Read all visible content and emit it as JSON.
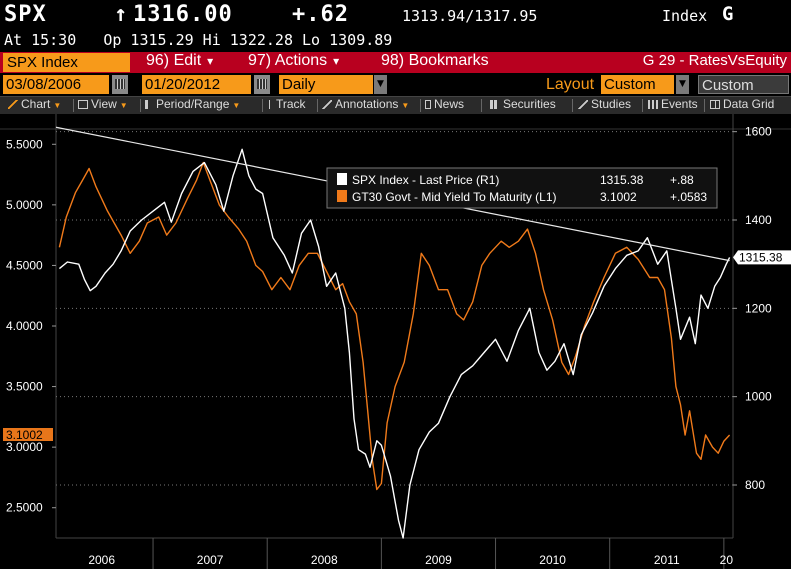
{
  "header": {
    "ticker": "SPX",
    "arrow": "↑",
    "price": "1316.00",
    "change": "+.62",
    "bid_ask": "1313.94/1317.95",
    "index_label": "Index",
    "index_letter": "G",
    "line2": "At 15:30   Op 1315.29 Hi 1322.28 Lo 1309.89"
  },
  "menu": {
    "security": "SPX Index",
    "items": [
      {
        "label": "96) Edit"
      },
      {
        "label": "97) Actions"
      },
      {
        "label": "98) Bookmarks"
      }
    ],
    "right_label": "G 29 - RatesVsEquity"
  },
  "datebar": {
    "start_date": "03/08/2006",
    "end_date": "01/20/2012",
    "periodicity": "Daily",
    "layout_label": "Layout",
    "layout_value": "Custom",
    "currency": "Custom CCY"
  },
  "toolbar": {
    "items": [
      "Chart",
      "View",
      "Period/Range",
      "Track",
      "Annotations",
      "News",
      "Securities",
      "Studies",
      "Events",
      "Data Grid"
    ]
  },
  "colors": {
    "orange": "#f07a1a",
    "white": "#ffffff",
    "accent": "#f79a1a",
    "menu_red": "#b8001f"
  },
  "chart_data": {
    "type": "line",
    "x_ticks": [
      "2006",
      "2007",
      "2008",
      "2009",
      "2010",
      "2011",
      "20"
    ],
    "x_range": [
      2006.15,
      2012.08
    ],
    "left_axis": {
      "ticks": [
        "5.5000",
        "5.0000",
        "4.5000",
        "4.0000",
        "3.5000",
        "3.0000",
        "2.5000"
      ],
      "range": [
        2.25,
        5.75
      ]
    },
    "right_axis": {
      "ticks": [
        "1600",
        "1400",
        "1200",
        "1000",
        "800"
      ],
      "range": [
        680,
        1640
      ]
    },
    "legend": [
      {
        "name": "SPX Index - Last Price (R1)",
        "last": "1315.38",
        "change": "+.88",
        "color": "#ffffff"
      },
      {
        "name": "GT30 Govt - Mid Yield To Maturity (L1)",
        "last": "3.1002",
        "change": "+.0583",
        "color": "#f07a1a"
      }
    ],
    "left_last_label": "3.1002",
    "right_last_label": "1315.38",
    "trendline": {
      "from": {
        "x": 2006.15,
        "y": 1610
      },
      "to": {
        "x": 2012.05,
        "y": 1308
      },
      "axis": "right"
    },
    "series": [
      {
        "name": "SPX Index - Last Price (R1)",
        "axis": "right",
        "color": "#ffffff",
        "points": [
          [
            2006.18,
            1290
          ],
          [
            2006.25,
            1305
          ],
          [
            2006.35,
            1300
          ],
          [
            2006.4,
            1265
          ],
          [
            2006.45,
            1240
          ],
          [
            2006.5,
            1250
          ],
          [
            2006.58,
            1280
          ],
          [
            2006.65,
            1300
          ],
          [
            2006.72,
            1330
          ],
          [
            2006.8,
            1375
          ],
          [
            2006.9,
            1400
          ],
          [
            2007.0,
            1420
          ],
          [
            2007.1,
            1440
          ],
          [
            2007.16,
            1395
          ],
          [
            2007.25,
            1460
          ],
          [
            2007.35,
            1510
          ],
          [
            2007.45,
            1530
          ],
          [
            2007.55,
            1480
          ],
          [
            2007.62,
            1420
          ],
          [
            2007.7,
            1500
          ],
          [
            2007.78,
            1560
          ],
          [
            2007.84,
            1500
          ],
          [
            2007.9,
            1470
          ],
          [
            2007.96,
            1460
          ],
          [
            2008.05,
            1360
          ],
          [
            2008.15,
            1320
          ],
          [
            2008.22,
            1280
          ],
          [
            2008.3,
            1370
          ],
          [
            2008.38,
            1400
          ],
          [
            2008.45,
            1340
          ],
          [
            2008.52,
            1250
          ],
          [
            2008.6,
            1280
          ],
          [
            2008.68,
            1200
          ],
          [
            2008.72,
            1100
          ],
          [
            2008.76,
            950
          ],
          [
            2008.8,
            880
          ],
          [
            2008.86,
            870
          ],
          [
            2008.9,
            840
          ],
          [
            2008.96,
            900
          ],
          [
            2009.0,
            890
          ],
          [
            2009.08,
            820
          ],
          [
            2009.15,
            720
          ],
          [
            2009.19,
            680
          ],
          [
            2009.25,
            800
          ],
          [
            2009.33,
            880
          ],
          [
            2009.42,
            920
          ],
          [
            2009.5,
            940
          ],
          [
            2009.6,
            1000
          ],
          [
            2009.7,
            1050
          ],
          [
            2009.8,
            1070
          ],
          [
            2009.9,
            1100
          ],
          [
            2010.0,
            1130
          ],
          [
            2010.1,
            1080
          ],
          [
            2010.2,
            1150
          ],
          [
            2010.3,
            1200
          ],
          [
            2010.38,
            1100
          ],
          [
            2010.45,
            1060
          ],
          [
            2010.52,
            1080
          ],
          [
            2010.6,
            1120
          ],
          [
            2010.68,
            1050
          ],
          [
            2010.75,
            1140
          ],
          [
            2010.85,
            1190
          ],
          [
            2010.95,
            1250
          ],
          [
            2011.05,
            1290
          ],
          [
            2011.15,
            1320
          ],
          [
            2011.25,
            1330
          ],
          [
            2011.33,
            1360
          ],
          [
            2011.42,
            1300
          ],
          [
            2011.5,
            1330
          ],
          [
            2011.58,
            1200
          ],
          [
            2011.62,
            1130
          ],
          [
            2011.7,
            1180
          ],
          [
            2011.75,
            1120
          ],
          [
            2011.8,
            1230
          ],
          [
            2011.86,
            1200
          ],
          [
            2011.92,
            1250
          ],
          [
            2011.97,
            1270
          ],
          [
            2012.02,
            1300
          ],
          [
            2012.05,
            1315.38
          ]
        ]
      },
      {
        "name": "GT30 Govt - Mid Yield To Maturity (L1)",
        "axis": "left",
        "color": "#f07a1a",
        "points": [
          [
            2006.18,
            4.65
          ],
          [
            2006.24,
            4.9
          ],
          [
            2006.32,
            5.1
          ],
          [
            2006.38,
            5.2
          ],
          [
            2006.44,
            5.3
          ],
          [
            2006.5,
            5.15
          ],
          [
            2006.55,
            5.05
          ],
          [
            2006.6,
            4.95
          ],
          [
            2006.66,
            4.85
          ],
          [
            2006.72,
            4.75
          ],
          [
            2006.8,
            4.6
          ],
          [
            2006.88,
            4.7
          ],
          [
            2006.95,
            4.85
          ],
          [
            2007.05,
            4.9
          ],
          [
            2007.12,
            4.75
          ],
          [
            2007.2,
            4.85
          ],
          [
            2007.3,
            5.05
          ],
          [
            2007.38,
            5.2
          ],
          [
            2007.44,
            5.35
          ],
          [
            2007.5,
            5.2
          ],
          [
            2007.58,
            5.0
          ],
          [
            2007.66,
            4.9
          ],
          [
            2007.75,
            4.8
          ],
          [
            2007.82,
            4.7
          ],
          [
            2007.9,
            4.5
          ],
          [
            2007.96,
            4.45
          ],
          [
            2008.04,
            4.3
          ],
          [
            2008.12,
            4.4
          ],
          [
            2008.2,
            4.3
          ],
          [
            2008.28,
            4.5
          ],
          [
            2008.36,
            4.6
          ],
          [
            2008.44,
            4.6
          ],
          [
            2008.52,
            4.45
          ],
          [
            2008.6,
            4.3
          ],
          [
            2008.66,
            4.35
          ],
          [
            2008.72,
            4.2
          ],
          [
            2008.78,
            4.1
          ],
          [
            2008.84,
            3.7
          ],
          [
            2008.88,
            3.3
          ],
          [
            2008.92,
            2.9
          ],
          [
            2008.96,
            2.65
          ],
          [
            2009.0,
            2.7
          ],
          [
            2009.05,
            3.2
          ],
          [
            2009.12,
            3.5
          ],
          [
            2009.2,
            3.7
          ],
          [
            2009.28,
            4.1
          ],
          [
            2009.35,
            4.6
          ],
          [
            2009.42,
            4.5
          ],
          [
            2009.5,
            4.3
          ],
          [
            2009.58,
            4.3
          ],
          [
            2009.66,
            4.1
          ],
          [
            2009.72,
            4.05
          ],
          [
            2009.8,
            4.2
          ],
          [
            2009.88,
            4.5
          ],
          [
            2009.95,
            4.6
          ],
          [
            2010.05,
            4.7
          ],
          [
            2010.12,
            4.65
          ],
          [
            2010.2,
            4.7
          ],
          [
            2010.28,
            4.8
          ],
          [
            2010.35,
            4.6
          ],
          [
            2010.42,
            4.3
          ],
          [
            2010.5,
            4.05
          ],
          [
            2010.58,
            3.7
          ],
          [
            2010.64,
            3.6
          ],
          [
            2010.7,
            3.75
          ],
          [
            2010.78,
            4.0
          ],
          [
            2010.86,
            4.2
          ],
          [
            2010.95,
            4.4
          ],
          [
            2011.05,
            4.6
          ],
          [
            2011.15,
            4.65
          ],
          [
            2011.25,
            4.55
          ],
          [
            2011.35,
            4.4
          ],
          [
            2011.42,
            4.4
          ],
          [
            2011.48,
            4.3
          ],
          [
            2011.54,
            3.9
          ],
          [
            2011.58,
            3.5
          ],
          [
            2011.62,
            3.35
          ],
          [
            2011.66,
            3.1
          ],
          [
            2011.7,
            3.3
          ],
          [
            2011.76,
            2.95
          ],
          [
            2011.8,
            2.9
          ],
          [
            2011.84,
            3.1
          ],
          [
            2011.9,
            3.0
          ],
          [
            2011.95,
            2.95
          ],
          [
            2012.0,
            3.05
          ],
          [
            2012.05,
            3.1002
          ]
        ]
      }
    ]
  }
}
